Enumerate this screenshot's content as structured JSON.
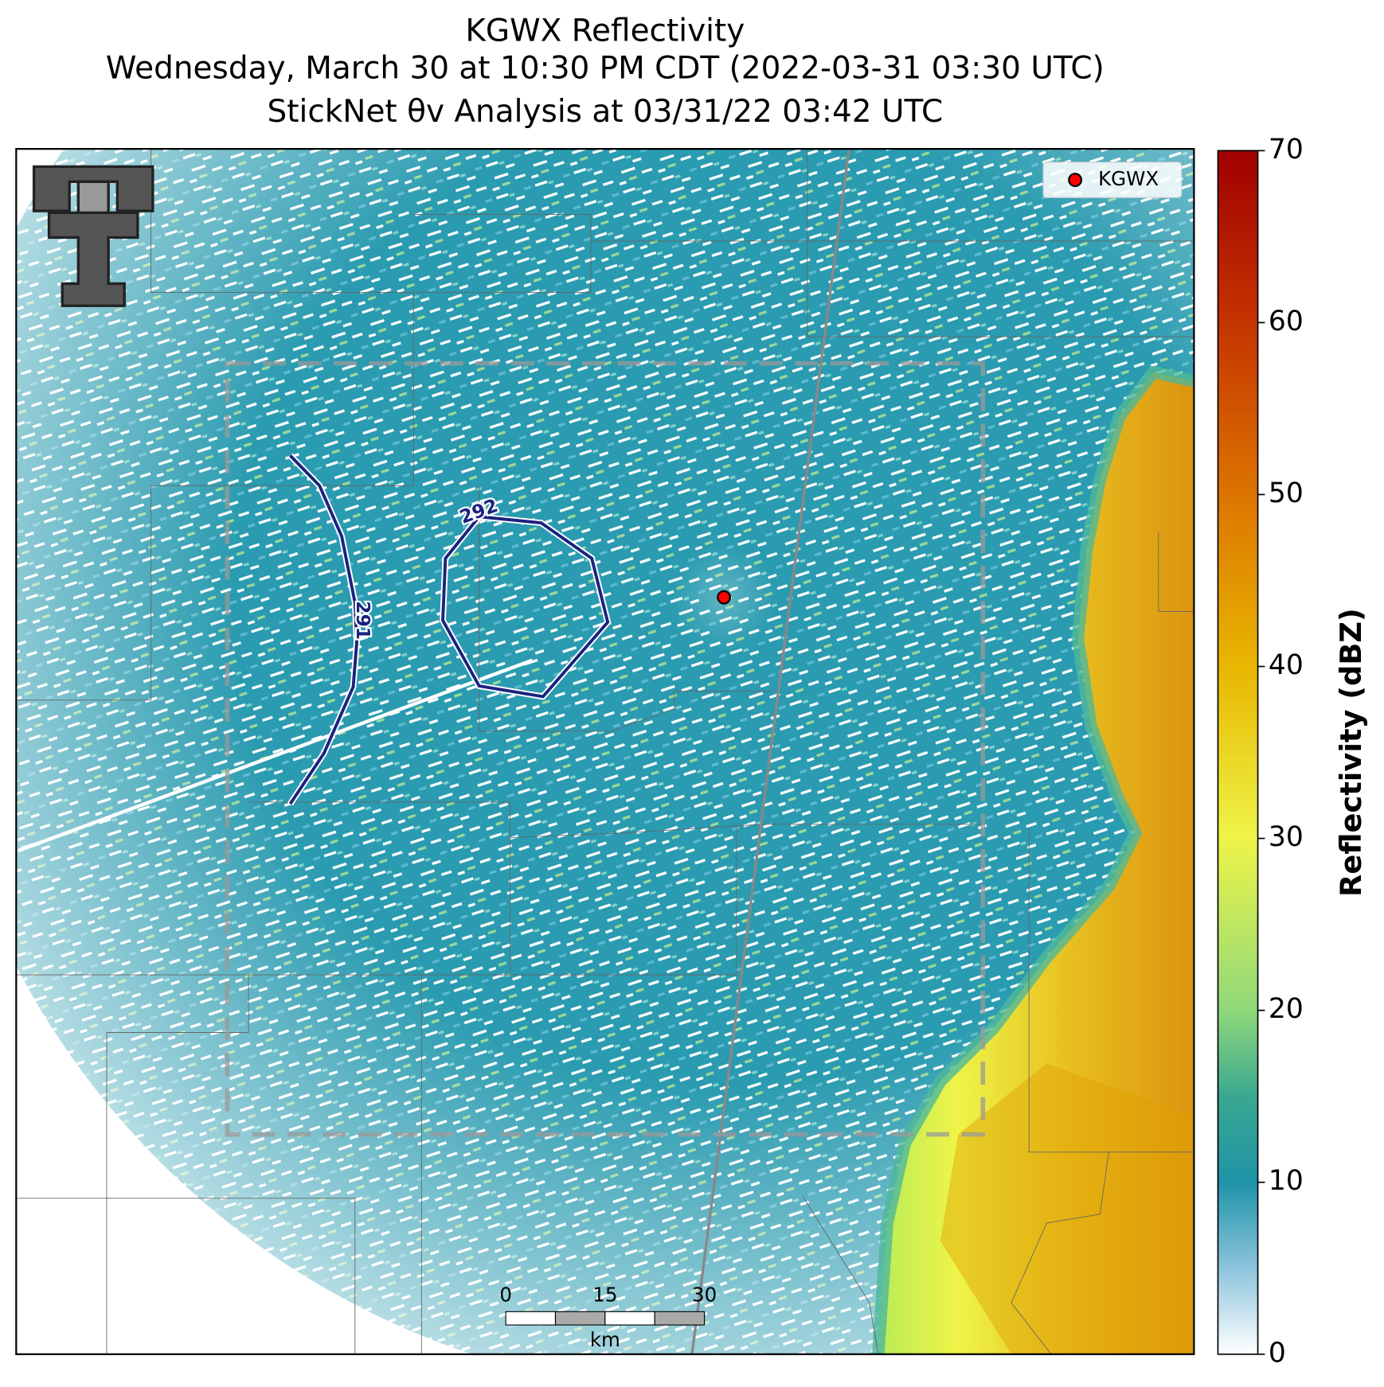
{
  "chart_data": {
    "type": "radar-map",
    "title": [
      "KGWX Reflectivity",
      "Wednesday, March 30 at 10:30 PM CDT (2022-03-31 03:30 UTC)",
      "StickNet θv Analysis at 03/31/22 03:42 UTC"
    ],
    "colorbar_label": "Reflectivity (dBZ)",
    "clim": [
      0,
      70
    ],
    "cticks": [
      0,
      10,
      20,
      30,
      40,
      50,
      60,
      70
    ],
    "colormap": [
      {
        "value": 0,
        "color": "#ffffff"
      },
      {
        "value": 5,
        "color": "#8cc4dc"
      },
      {
        "value": 10,
        "color": "#1f93a8"
      },
      {
        "value": 15,
        "color": "#3aa890"
      },
      {
        "value": 20,
        "color": "#8fd87a"
      },
      {
        "value": 30,
        "color": "#eef448"
      },
      {
        "value": 40,
        "color": "#e8b600"
      },
      {
        "value": 50,
        "color": "#dc7400"
      },
      {
        "value": 60,
        "color": "#c43400"
      },
      {
        "value": 70,
        "color": "#a00000"
      }
    ],
    "legend": {
      "label": "KGWX",
      "color": "#ff0000",
      "corner": "upper right"
    },
    "contours": [
      {
        "level": 291,
        "label": "291"
      },
      {
        "level": 292,
        "label": "292"
      }
    ],
    "contour_color": "#1a237e",
    "scale_bar": {
      "ticks": [
        0,
        15,
        30
      ],
      "unit": "km"
    }
  }
}
